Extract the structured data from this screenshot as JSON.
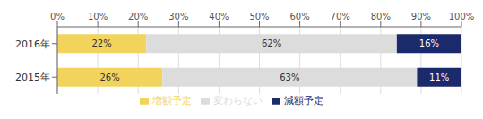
{
  "chart_data": {
    "type": "bar",
    "orientation": "horizontal",
    "stacked": true,
    "categories": [
      "2016年",
      "2015年"
    ],
    "series": [
      {
        "name": "増額予定",
        "color": "#F2D45C",
        "values": [
          22,
          26
        ],
        "value_labels": [
          "22%",
          "26%"
        ]
      },
      {
        "name": "変わらない",
        "color": "#DCDCDC",
        "values": [
          62,
          63
        ],
        "value_labels": [
          "62%",
          "63%"
        ]
      },
      {
        "name": "減額予定",
        "color": "#1B2A6B",
        "values": [
          16,
          11
        ],
        "value_labels": [
          "16%",
          "11%"
        ]
      }
    ],
    "xlim": [
      0,
      100
    ],
    "xticks": [
      {
        "value": 0,
        "label": "0%"
      },
      {
        "value": 10,
        "label": "10%"
      },
      {
        "value": 20,
        "label": "20%"
      },
      {
        "value": 30,
        "label": "30%"
      },
      {
        "value": 40,
        "label": "40%"
      },
      {
        "value": 50,
        "label": "50%"
      },
      {
        "value": 60,
        "label": "60%"
      },
      {
        "value": 70,
        "label": "70%"
      },
      {
        "value": 80,
        "label": "80%"
      },
      {
        "value": 90,
        "label": "90%"
      },
      {
        "value": 100,
        "label": "100%"
      }
    ],
    "grid": true,
    "data_labels": true,
    "legend": "bottom"
  }
}
